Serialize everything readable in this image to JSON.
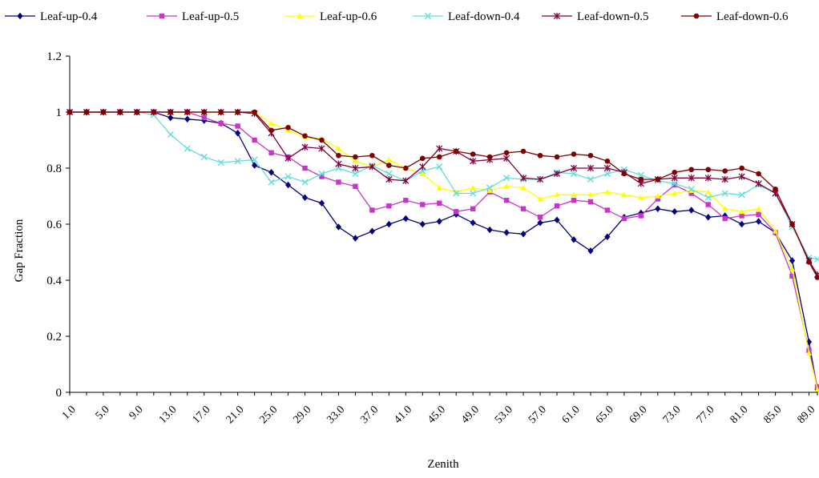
{
  "chart_data": {
    "type": "line",
    "title": "",
    "xlabel": "Zenith",
    "ylabel": "Gap Fraction",
    "ylim": [
      0,
      1.2
    ],
    "xlim": [
      1,
      90
    ],
    "yticks": [
      "0",
      "0.2",
      "0.4",
      "0.6",
      "0.8",
      "1",
      "1.2"
    ],
    "yticks_values": [
      0,
      0.2,
      0.4,
      0.6,
      0.8,
      1.0,
      1.2
    ],
    "xtick_labels": [
      "1.0",
      "5.0",
      "9.0",
      "13.0",
      "17.0",
      "21.0",
      "25.0",
      "29.0",
      "33.0",
      "37.0",
      "41.0",
      "45.0",
      "49.0",
      "53.0",
      "57.0",
      "61.0",
      "65.0",
      "69.0",
      "73.0",
      "77.0",
      "81.0",
      "85.0",
      "89.0"
    ],
    "xtick_values": [
      1,
      5,
      9,
      13,
      17,
      21,
      25,
      29,
      33,
      37,
      41,
      45,
      49,
      53,
      57,
      61,
      65,
      69,
      73,
      77,
      81,
      85,
      89
    ],
    "grid": false,
    "legend_position": "top",
    "x": [
      1,
      3,
      5,
      7,
      9,
      11,
      13,
      15,
      17,
      19,
      21,
      23,
      25,
      27,
      29,
      31,
      33,
      35,
      37,
      39,
      41,
      43,
      45,
      47,
      49,
      51,
      53,
      55,
      57,
      59,
      61,
      63,
      65,
      67,
      69,
      71,
      73,
      75,
      77,
      79,
      81,
      83,
      85,
      87,
      89,
      90
    ],
    "series": [
      {
        "name": "Leaf-up-0.4",
        "color": "#000080",
        "marker": "diamond",
        "values": [
          1,
          1,
          1,
          1,
          1,
          1,
          0.98,
          0.975,
          0.97,
          0.96,
          0.925,
          0.81,
          0.785,
          0.74,
          0.695,
          0.675,
          0.59,
          0.55,
          0.575,
          0.6,
          0.62,
          0.6,
          0.61,
          0.635,
          0.605,
          0.58,
          0.57,
          0.565,
          0.605,
          0.615,
          0.545,
          0.505,
          0.555,
          0.625,
          0.64,
          0.655,
          0.645,
          0.65,
          0.625,
          0.63,
          0.6,
          0.61,
          0.57,
          0.47,
          0.18,
          0.01
        ]
      },
      {
        "name": "Leaf-up-0.5",
        "color": "#cc33cc",
        "marker": "square",
        "values": [
          1,
          1,
          1,
          1,
          1,
          1,
          1,
          1,
          0.98,
          0.96,
          0.95,
          0.9,
          0.855,
          0.84,
          0.8,
          0.77,
          0.75,
          0.735,
          0.65,
          0.665,
          0.685,
          0.67,
          0.675,
          0.645,
          0.655,
          0.715,
          0.685,
          0.655,
          0.625,
          0.665,
          0.685,
          0.68,
          0.65,
          0.62,
          0.63,
          0.69,
          0.74,
          0.71,
          0.67,
          0.62,
          0.63,
          0.635,
          0.57,
          0.415,
          0.15,
          0.02
        ]
      },
      {
        "name": "Leaf-up-0.6",
        "color": "#ffff00",
        "marker": "triangle",
        "values": [
          1,
          1,
          1,
          1,
          1,
          1,
          1,
          1,
          1,
          1,
          1,
          1,
          0.96,
          0.935,
          0.91,
          0.905,
          0.87,
          0.825,
          0.805,
          0.83,
          0.8,
          0.78,
          0.73,
          0.715,
          0.73,
          0.72,
          0.735,
          0.73,
          0.69,
          0.705,
          0.705,
          0.705,
          0.715,
          0.705,
          0.695,
          0.7,
          0.71,
          0.72,
          0.715,
          0.655,
          0.645,
          0.655,
          0.575,
          0.44,
          0.14,
          0.01
        ]
      },
      {
        "name": "Leaf-down-0.4",
        "color": "#66dddd",
        "marker": "cross",
        "values": [
          1,
          1,
          1,
          1,
          1,
          0.99,
          0.92,
          0.87,
          0.84,
          0.82,
          0.825,
          0.83,
          0.75,
          0.77,
          0.75,
          0.78,
          0.8,
          0.78,
          0.81,
          0.78,
          0.755,
          0.79,
          0.805,
          0.71,
          0.71,
          0.73,
          0.765,
          0.76,
          0.76,
          0.785,
          0.78,
          0.76,
          0.78,
          0.795,
          0.775,
          0.755,
          0.745,
          0.725,
          0.695,
          0.71,
          0.705,
          0.74,
          0.71,
          0.59,
          0.48,
          0.475
        ]
      },
      {
        "name": "Leaf-down-0.5",
        "color": "#800040",
        "marker": "star",
        "values": [
          1,
          1,
          1,
          1,
          1,
          1,
          1,
          1,
          1,
          1,
          1,
          0.995,
          0.925,
          0.835,
          0.875,
          0.87,
          0.815,
          0.8,
          0.805,
          0.76,
          0.755,
          0.805,
          0.87,
          0.86,
          0.825,
          0.83,
          0.835,
          0.765,
          0.76,
          0.78,
          0.8,
          0.8,
          0.8,
          0.785,
          0.745,
          0.76,
          0.765,
          0.765,
          0.765,
          0.76,
          0.77,
          0.745,
          0.71,
          0.6,
          0.47,
          0.42
        ]
      },
      {
        "name": "Leaf-down-0.6",
        "color": "#800000",
        "marker": "circle",
        "values": [
          1,
          1,
          1,
          1,
          1,
          1,
          1,
          1,
          1,
          1,
          1,
          1,
          0.935,
          0.945,
          0.915,
          0.9,
          0.845,
          0.84,
          0.845,
          0.81,
          0.8,
          0.835,
          0.84,
          0.86,
          0.85,
          0.84,
          0.855,
          0.86,
          0.845,
          0.84,
          0.85,
          0.845,
          0.825,
          0.78,
          0.76,
          0.76,
          0.785,
          0.795,
          0.795,
          0.79,
          0.8,
          0.78,
          0.725,
          0.6,
          0.465,
          0.41
        ]
      }
    ]
  }
}
